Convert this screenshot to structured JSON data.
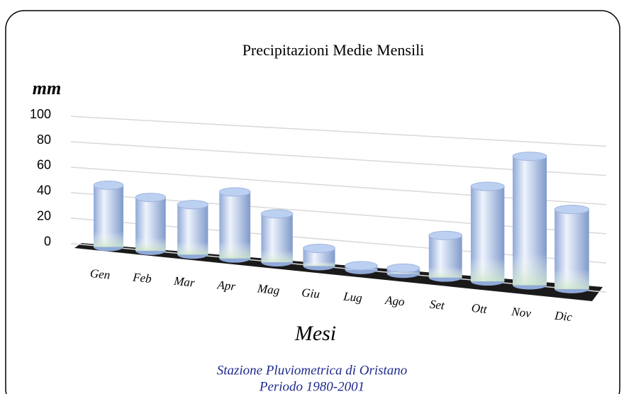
{
  "chart_data": {
    "type": "bar3d",
    "title": "Precipitazioni Medie Mensili",
    "y_label": "mm",
    "x_label": "Mesi",
    "footer": [
      "Stazione Pluviometrica di Oristano",
      "Periodo 1980-2001"
    ],
    "categories": [
      "Gen",
      "Feb",
      "Mar",
      "Apr",
      "Mag",
      "Giu",
      "Lug",
      "Ago",
      "Set",
      "Ott",
      "Nov",
      "Dic"
    ],
    "values": [
      48,
      41,
      38,
      50,
      36,
      13,
      3,
      4,
      30,
      67,
      90,
      55
    ],
    "color": "#a9c0ea",
    "ylim": [
      0,
      100
    ],
    "yticks": [
      0,
      20,
      40,
      60,
      80,
      100
    ],
    "grid": true
  }
}
